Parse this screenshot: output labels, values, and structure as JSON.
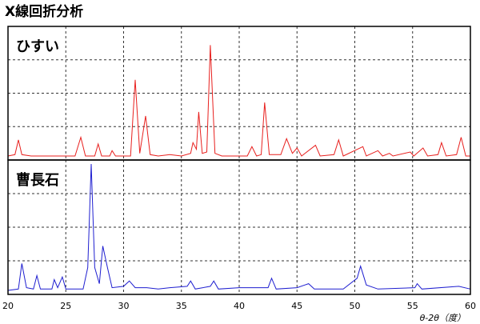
{
  "title": "X線回折分析",
  "chart_data": [
    {
      "type": "line",
      "title": "ひすい",
      "color": "#e8201e",
      "x": [
        20,
        20.6,
        20.9,
        21.2,
        22,
        24,
        25.8,
        26.3,
        26.7,
        27.5,
        27.8,
        28.1,
        28.8,
        29,
        29.3,
        30.6,
        31.0,
        31.4,
        31.9,
        32.3,
        33,
        34,
        35,
        35.8,
        36.0,
        36.3,
        36.5,
        36.8,
        37.2,
        37.5,
        37.9,
        38.5,
        40.7,
        41.1,
        41.5,
        41.9,
        42.2,
        42.6,
        43.6,
        44.1,
        44.6,
        45,
        45.4,
        46.6,
        47,
        48.2,
        48.6,
        49,
        50.7,
        51,
        52,
        52.4,
        53,
        53.3,
        54.8,
        55.1,
        55.9,
        56.3,
        57.2,
        57.5,
        57.9,
        58.8,
        59.2,
        59.6,
        60
      ],
      "values": [
        3,
        4,
        15,
        4,
        3,
        3,
        3,
        17,
        3,
        3,
        12,
        3,
        3,
        7,
        3,
        3,
        60,
        5,
        33,
        4,
        3,
        4,
        3,
        5,
        13,
        8,
        36,
        5,
        6,
        86,
        5,
        3,
        3,
        10,
        3,
        4,
        43,
        4,
        4,
        16,
        5,
        9,
        3,
        11,
        3,
        4,
        15,
        3,
        10,
        3,
        7,
        3,
        5,
        3,
        6,
        3,
        9,
        3,
        4,
        13,
        3,
        4,
        17,
        3,
        3
      ],
      "xlim": [
        20,
        60
      ],
      "xticks": [
        20,
        25,
        30,
        35,
        40,
        45,
        50,
        55,
        60
      ],
      "ylim": [
        0,
        100
      ],
      "yticks": [
        0,
        25,
        50,
        75,
        100
      ],
      "grid": true
    },
    {
      "type": "line",
      "title": "曹長石",
      "color": "#1f1fd0",
      "x": [
        20,
        20.9,
        21.2,
        21.6,
        22.2,
        22.5,
        22.8,
        23.8,
        24,
        24.3,
        24.7,
        25,
        26.5,
        26.9,
        27.2,
        27.5,
        27.9,
        28.2,
        28.6,
        29,
        30,
        30.5,
        31,
        32,
        33,
        34,
        35.5,
        35.8,
        36.2,
        37.5,
        37.8,
        38.2,
        40,
        42.5,
        42.8,
        43.2,
        45,
        46,
        46.5,
        49,
        50.2,
        50.5,
        51,
        52,
        55.2,
        55.4,
        55.8,
        59,
        60
      ],
      "values": [
        3,
        4,
        23,
        5,
        4,
        14,
        4,
        4,
        11,
        5,
        13,
        4,
        4,
        20,
        97,
        20,
        8,
        36,
        20,
        5,
        6,
        10,
        5,
        5,
        4,
        5,
        6,
        10,
        4,
        6,
        10,
        4,
        5,
        5,
        12,
        4,
        5,
        8,
        4,
        4,
        12,
        21,
        7,
        4,
        5,
        8,
        4,
        6,
        4
      ],
      "xlim": [
        20,
        60
      ],
      "xticks": [
        20,
        25,
        30,
        35,
        40,
        45,
        50,
        55,
        60
      ],
      "xlabel": "θ-2θ（度）",
      "ylim": [
        0,
        100
      ],
      "yticks": [
        0,
        25,
        50,
        75,
        100
      ],
      "grid": true
    }
  ]
}
